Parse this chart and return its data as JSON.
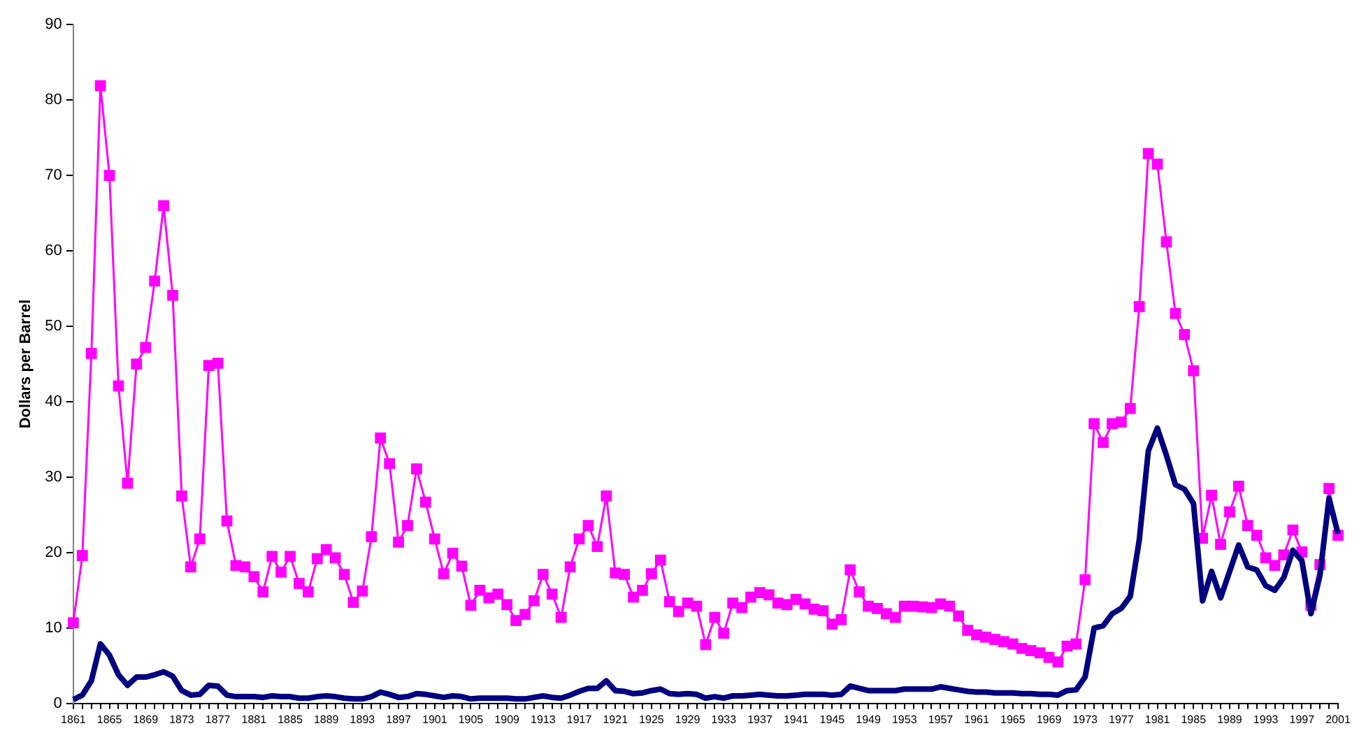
{
  "chart_data": {
    "type": "line",
    "ylabel": "Dollars per Barrel",
    "categories": [
      "1861",
      null,
      null,
      null,
      "1865",
      null,
      null,
      null,
      "1869",
      null,
      null,
      null,
      "1873",
      null,
      null,
      null,
      "1877",
      null,
      null,
      null,
      "1881",
      null,
      null,
      null,
      "1885",
      null,
      null,
      null,
      "1889",
      null,
      null,
      null,
      "1893",
      null,
      null,
      null,
      "1897",
      null,
      null,
      null,
      "1901",
      null,
      null,
      null,
      "1905",
      null,
      null,
      null,
      "1909",
      null,
      null,
      null,
      "1913",
      null,
      null,
      null,
      "1917",
      null,
      null,
      null,
      "1921",
      null,
      null,
      null,
      "1925",
      null,
      null,
      null,
      "1929",
      null,
      null,
      null,
      "1933",
      null,
      null,
      null,
      "1937",
      null,
      null,
      null,
      "1941",
      null,
      null,
      null,
      "1945",
      null,
      null,
      null,
      "1949",
      null,
      null,
      null,
      "1953",
      null,
      null,
      null,
      "1957",
      null,
      null,
      null,
      "1961",
      null,
      null,
      null,
      "1965",
      null,
      null,
      null,
      "1969",
      null,
      null,
      null,
      "1973",
      null,
      null,
      null,
      "1977",
      null,
      null,
      null,
      "1981",
      null,
      null,
      null,
      "1985",
      null,
      null,
      null,
      "1989",
      null,
      null,
      null,
      "1993",
      null,
      null,
      null,
      "1997",
      null,
      null,
      null,
      "2001"
    ],
    "series": [
      {
        "color": "#000080",
        "marker": "none",
        "values": [
          0.5,
          1.1,
          3.0,
          7.9,
          6.4,
          3.8,
          2.4,
          3.5,
          3.5,
          3.8,
          4.2,
          3.6,
          1.7,
          1.1,
          1.2,
          2.4,
          2.3,
          1.1,
          0.9,
          0.9,
          0.9,
          0.8,
          1.0,
          0.9,
          0.9,
          0.7,
          0.7,
          0.9,
          1.0,
          0.9,
          0.7,
          0.6,
          0.6,
          0.9,
          1.5,
          1.2,
          0.8,
          0.9,
          1.3,
          1.2,
          1.0,
          0.8,
          1.0,
          0.9,
          0.6,
          0.7,
          0.7,
          0.7,
          0.7,
          0.6,
          0.6,
          0.8,
          1.0,
          0.8,
          0.7,
          1.1,
          1.6,
          2.0,
          2.0,
          3.0,
          1.7,
          1.6,
          1.3,
          1.4,
          1.7,
          1.9,
          1.3,
          1.2,
          1.3,
          1.2,
          0.7,
          0.9,
          0.7,
          1.0,
          1.0,
          1.1,
          1.2,
          1.1,
          1.0,
          1.0,
          1.1,
          1.2,
          1.2,
          1.2,
          1.1,
          1.2,
          2.3,
          2.0,
          1.7,
          1.7,
          1.7,
          1.7,
          1.9,
          1.9,
          1.9,
          1.9,
          2.2,
          2.0,
          1.8,
          1.6,
          1.5,
          1.5,
          1.4,
          1.4,
          1.4,
          1.3,
          1.3,
          1.2,
          1.2,
          1.1,
          1.7,
          1.8,
          3.5,
          10.0,
          10.3,
          11.9,
          12.6,
          14.2,
          21.7,
          33.5,
          36.5,
          32.9,
          29.0,
          28.4,
          26.5,
          13.6,
          17.5,
          14.0,
          17.5,
          21.0,
          18.1,
          17.7,
          15.6,
          15.0,
          16.7,
          20.3,
          18.9,
          11.9,
          17.0,
          27.2,
          22.5
        ]
      },
      {
        "color": "#ff00ff",
        "marker": "square",
        "values": [
          10.7,
          19.6,
          46.4,
          81.9,
          70.0,
          42.1,
          29.2,
          45.0,
          47.2,
          56.0,
          66.0,
          54.1,
          27.5,
          18.1,
          21.8,
          44.8,
          45.1,
          24.2,
          18.3,
          18.1,
          16.8,
          14.8,
          19.5,
          17.4,
          19.5,
          15.9,
          14.8,
          19.2,
          20.4,
          19.3,
          17.1,
          13.4,
          14.9,
          22.1,
          35.2,
          31.8,
          21.4,
          23.6,
          31.1,
          26.7,
          21.8,
          17.2,
          19.9,
          18.2,
          13.0,
          15.0,
          14.0,
          14.5,
          13.1,
          11.0,
          11.8,
          13.6,
          17.1,
          14.5,
          11.4,
          18.1,
          21.8,
          23.6,
          20.8,
          27.5,
          17.3,
          17.1,
          14.1,
          15.0,
          17.2,
          19.0,
          13.5,
          12.2,
          13.3,
          12.9,
          7.8,
          11.4,
          9.3,
          13.3,
          12.7,
          14.1,
          14.7,
          14.4,
          13.3,
          13.1,
          13.8,
          13.2,
          12.5,
          12.3,
          10.5,
          11.1,
          17.7,
          14.8,
          12.9,
          12.6,
          11.9,
          11.4,
          12.9,
          12.9,
          12.8,
          12.7,
          13.2,
          12.9,
          11.6,
          9.7,
          9.1,
          8.8,
          8.5,
          8.2,
          7.9,
          7.3,
          7.0,
          6.7,
          6.1,
          5.5,
          7.6,
          7.9,
          16.4,
          37.1,
          34.6,
          37.1,
          37.3,
          39.1,
          52.6,
          72.9,
          71.5,
          61.2,
          51.7,
          48.9,
          44.1,
          21.9,
          27.6,
          21.1,
          25.4,
          28.8,
          23.6,
          22.3,
          19.3,
          18.3,
          19.7,
          23.0,
          20.1,
          13.0,
          18.4,
          28.5,
          22.3
        ]
      }
    ],
    "ylim": [
      0,
      90
    ],
    "yticks": [
      0,
      10,
      20,
      30,
      40,
      50,
      60,
      70,
      80,
      90
    ],
    "grid": false,
    "legend": false,
    "line_style": "solid"
  }
}
